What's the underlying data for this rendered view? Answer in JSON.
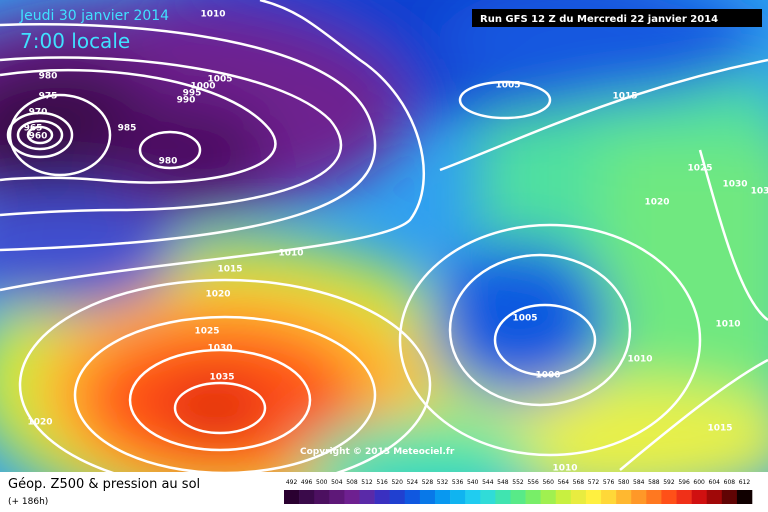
{
  "header": {
    "date": "Jeudi 30 janvier 2014",
    "time": "7:00 locale",
    "run": "Run GFS 12 Z du Mercredi 22 janvier 2014"
  },
  "isobar_labels": [
    "1010",
    "980",
    "975",
    "970",
    "965",
    "960",
    "1005",
    "1000",
    "995",
    "990",
    "985",
    "980",
    "1005",
    "1015",
    "1025",
    "1030",
    "103",
    "1020",
    "1010",
    "1015",
    "1020",
    "1025",
    "1030",
    "1035",
    "1005",
    "1000",
    "1010",
    "1010",
    "1020",
    "1015",
    "1010"
  ],
  "copyright": "Copyright © 2013 Meteociel.fr",
  "footer": {
    "title": "Géop. Z500 & pression au sol",
    "lead": "(+ 186h)"
  },
  "scale": {
    "values": [
      492,
      496,
      500,
      504,
      508,
      512,
      516,
      520,
      524,
      528,
      532,
      536,
      540,
      544,
      548,
      552,
      556,
      560,
      564,
      568,
      572,
      576,
      580,
      584,
      588,
      592,
      596,
      600,
      604,
      608,
      612
    ],
    "colors": [
      "#2a0030",
      "#3a0a4a",
      "#4c1060",
      "#5e1878",
      "#6e2090",
      "#5a2aa8",
      "#3a30c0",
      "#2040d0",
      "#1058e0",
      "#0878e8",
      "#0898f0",
      "#10b4f0",
      "#20ccf0",
      "#30dcd8",
      "#40e4b0",
      "#58ea88",
      "#78ee68",
      "#a0f050",
      "#c8f040",
      "#e8ec40",
      "#fff040",
      "#ffd838",
      "#ffb830",
      "#ff9828",
      "#ff7820",
      "#ff5018",
      "#f03018",
      "#d01010",
      "#a00808",
      "#600404",
      "#100000"
    ]
  }
}
